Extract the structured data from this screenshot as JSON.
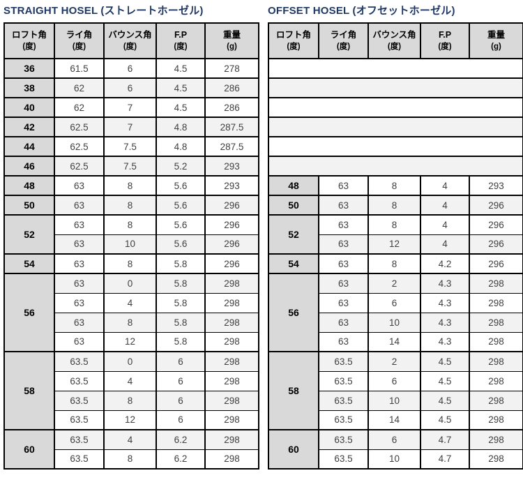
{
  "colors": {
    "title": "#1f3864",
    "header_bg": "#d9d9d9",
    "loft_bg": "#d9d9d9",
    "stripe_bg": "#f2f2f2",
    "border": "#000000",
    "value_text": "#404040",
    "page_bg": "#ffffff"
  },
  "columns": [
    {
      "label": "ロフト角",
      "unit": "(度)"
    },
    {
      "label": "ライ角",
      "unit": "(度)"
    },
    {
      "label": "バウンス角",
      "unit": "(度)"
    },
    {
      "label": "F.P",
      "unit": "(度)"
    },
    {
      "label": "重量",
      "unit": "(g)"
    }
  ],
  "tables": [
    {
      "id": "straight",
      "title": "STRAIGHT HOSEL (ストレートホーゼル)",
      "empty_rows": 0,
      "groups": [
        {
          "loft": "36",
          "rows": [
            [
              "61.5",
              "6",
              "4.5",
              "278"
            ]
          ]
        },
        {
          "loft": "38",
          "rows": [
            [
              "62",
              "6",
              "4.5",
              "286"
            ]
          ]
        },
        {
          "loft": "40",
          "rows": [
            [
              "62",
              "7",
              "4.5",
              "286"
            ]
          ]
        },
        {
          "loft": "42",
          "rows": [
            [
              "62.5",
              "7",
              "4.8",
              "287.5"
            ]
          ]
        },
        {
          "loft": "44",
          "rows": [
            [
              "62.5",
              "7.5",
              "4.8",
              "287.5"
            ]
          ]
        },
        {
          "loft": "46",
          "rows": [
            [
              "62.5",
              "7.5",
              "5.2",
              "293"
            ]
          ]
        },
        {
          "loft": "48",
          "rows": [
            [
              "63",
              "8",
              "5.6",
              "293"
            ]
          ]
        },
        {
          "loft": "50",
          "rows": [
            [
              "63",
              "8",
              "5.6",
              "296"
            ]
          ]
        },
        {
          "loft": "52",
          "rows": [
            [
              "63",
              "8",
              "5.6",
              "296"
            ],
            [
              "63",
              "10",
              "5.6",
              "296"
            ]
          ]
        },
        {
          "loft": "54",
          "rows": [
            [
              "63",
              "8",
              "5.8",
              "296"
            ]
          ]
        },
        {
          "loft": "56",
          "rows": [
            [
              "63",
              "0",
              "5.8",
              "298"
            ],
            [
              "63",
              "4",
              "5.8",
              "298"
            ],
            [
              "63",
              "8",
              "5.8",
              "298"
            ],
            [
              "63",
              "12",
              "5.8",
              "298"
            ]
          ]
        },
        {
          "loft": "58",
          "rows": [
            [
              "63.5",
              "0",
              "6",
              "298"
            ],
            [
              "63.5",
              "4",
              "6",
              "298"
            ],
            [
              "63.5",
              "8",
              "6",
              "298"
            ],
            [
              "63.5",
              "12",
              "6",
              "298"
            ]
          ]
        },
        {
          "loft": "60",
          "rows": [
            [
              "63.5",
              "4",
              "6.2",
              "298"
            ],
            [
              "63.5",
              "8",
              "6.2",
              "298"
            ]
          ]
        }
      ]
    },
    {
      "id": "offset",
      "title": "OFFSET HOSEL (オフセットホーゼル)",
      "empty_rows": 6,
      "groups": [
        {
          "loft": "48",
          "rows": [
            [
              "63",
              "8",
              "4",
              "293"
            ]
          ]
        },
        {
          "loft": "50",
          "rows": [
            [
              "63",
              "8",
              "4",
              "296"
            ]
          ]
        },
        {
          "loft": "52",
          "rows": [
            [
              "63",
              "8",
              "4",
              "296"
            ],
            [
              "63",
              "12",
              "4",
              "296"
            ]
          ]
        },
        {
          "loft": "54",
          "rows": [
            [
              "63",
              "8",
              "4.2",
              "296"
            ]
          ]
        },
        {
          "loft": "56",
          "rows": [
            [
              "63",
              "2",
              "4.3",
              "298"
            ],
            [
              "63",
              "6",
              "4.3",
              "298"
            ],
            [
              "63",
              "10",
              "4.3",
              "298"
            ],
            [
              "63",
              "14",
              "4.3",
              "298"
            ]
          ]
        },
        {
          "loft": "58",
          "rows": [
            [
              "63.5",
              "2",
              "4.5",
              "298"
            ],
            [
              "63.5",
              "6",
              "4.5",
              "298"
            ],
            [
              "63.5",
              "10",
              "4.5",
              "298"
            ],
            [
              "63.5",
              "14",
              "4.5",
              "298"
            ]
          ]
        },
        {
          "loft": "60",
          "rows": [
            [
              "63.5",
              "6",
              "4.7",
              "298"
            ],
            [
              "63.5",
              "10",
              "4.7",
              "298"
            ]
          ]
        }
      ]
    }
  ]
}
